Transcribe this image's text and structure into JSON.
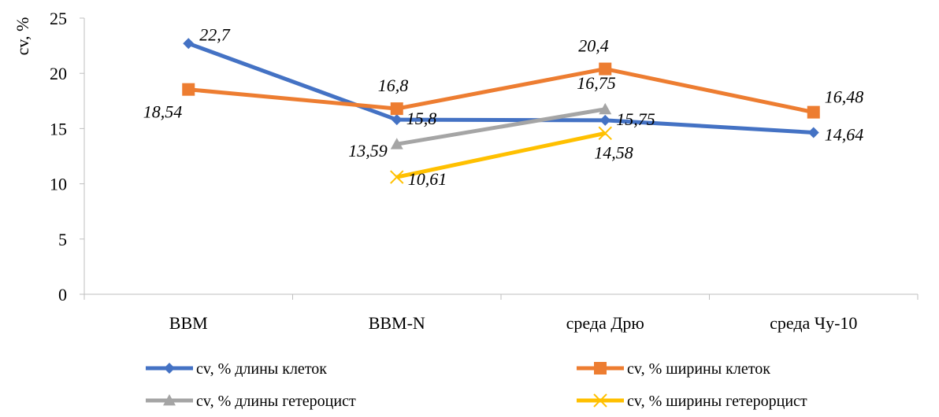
{
  "chart_data": {
    "type": "line",
    "title": "",
    "xlabel": "",
    "ylabel": "cv, %",
    "ylim": [
      0,
      25
    ],
    "yticks": [
      0,
      5,
      10,
      15,
      20,
      25
    ],
    "grid": false,
    "legend_position": "bottom",
    "categories": [
      "BBM",
      "BBM-N",
      "среда Дрю",
      "среда Чу-10"
    ],
    "series": [
      {
        "name": "cv, % длины клеток",
        "color": "#4472C4",
        "marker": "diamond",
        "values": [
          22.7,
          15.8,
          15.75,
          14.64
        ],
        "labels": [
          "22,7",
          "15,8",
          "15,75",
          "14,64"
        ]
      },
      {
        "name": "cv, % ширины клеток",
        "color": "#ED7D31",
        "marker": "square",
        "values": [
          18.54,
          16.8,
          20.4,
          16.48
        ],
        "labels": [
          "18,54",
          "16,8",
          "20,4",
          "16,48"
        ]
      },
      {
        "name": "cv, % длины гетероцист",
        "color": "#A5A5A5",
        "marker": "triangle",
        "values": [
          null,
          13.59,
          16.75,
          null
        ],
        "labels": [
          null,
          "13,59",
          "16,75",
          null
        ]
      },
      {
        "name": "cv, % ширины гетерорцист",
        "color": "#FFC000",
        "marker": "x",
        "values": [
          null,
          10.61,
          14.58,
          null
        ],
        "labels": [
          null,
          "10,61",
          "14,58",
          null
        ]
      }
    ]
  }
}
